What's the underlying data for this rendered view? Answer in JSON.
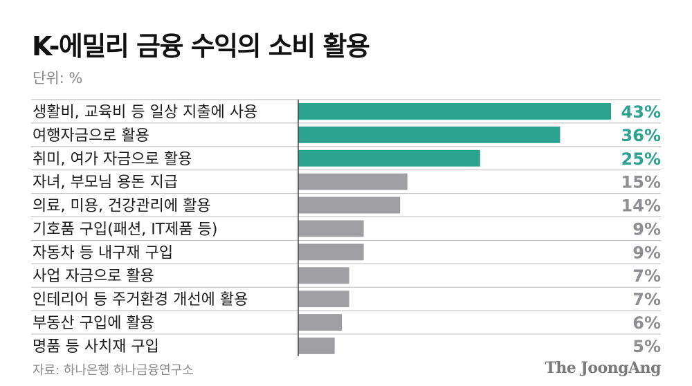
{
  "chart_data": {
    "type": "bar",
    "orientation": "horizontal",
    "title": "K-에밀리 금융 수익의 소비 활용",
    "unit_label": "단위: %",
    "categories": [
      "생활비, 교육비 등 일상 지출에 사용",
      "여행자금으로 활용",
      "취미, 여가 자금으로 활용",
      "자녀, 부모님 용돈 지급",
      "의료, 미용, 건강관리에 활용",
      "기호품 구입(패션, IT제품 등)",
      "자동차 등 내구재 구입",
      "사업 자금으로 활용",
      "인테리어 등 주거환경 개선에 활용",
      "부동산 구입에 활용",
      "명품 등 사치재 구입"
    ],
    "values": [
      43,
      36,
      25,
      15,
      14,
      9,
      9,
      7,
      7,
      6,
      5
    ],
    "value_labels": [
      "43%",
      "36%",
      "25%",
      "15%",
      "14%",
      "9%",
      "9%",
      "7%",
      "7%",
      "6%",
      "5%"
    ],
    "highlight_count": 3,
    "xlim": [
      0,
      45
    ],
    "source": "자료: 하나은행 하나금융연구소",
    "brand": "The JoongAng",
    "colors": {
      "highlight": "#2ba38e",
      "default": "#9e9ea3",
      "highlight_text": "#2ba38e",
      "default_text": "#8e8e93"
    }
  }
}
